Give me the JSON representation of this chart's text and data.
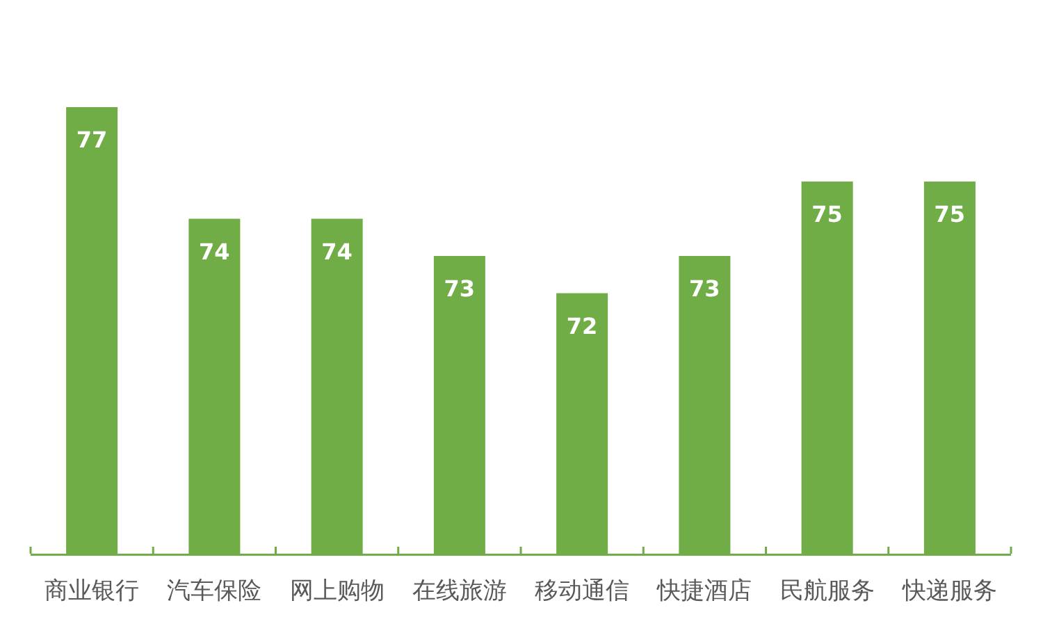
{
  "chart_data": {
    "type": "bar",
    "categories": [
      "商业银行",
      "汽车保险",
      "网上购物",
      "在线旅游",
      "移动通信",
      "快捷酒店",
      "民航服务",
      "快递服务"
    ],
    "values": [
      77,
      74,
      74,
      73,
      72,
      73,
      75,
      75
    ],
    "color": "#70ad47",
    "ylim": [
      65,
      77
    ],
    "data_labels": true,
    "tick_labels": "x"
  }
}
